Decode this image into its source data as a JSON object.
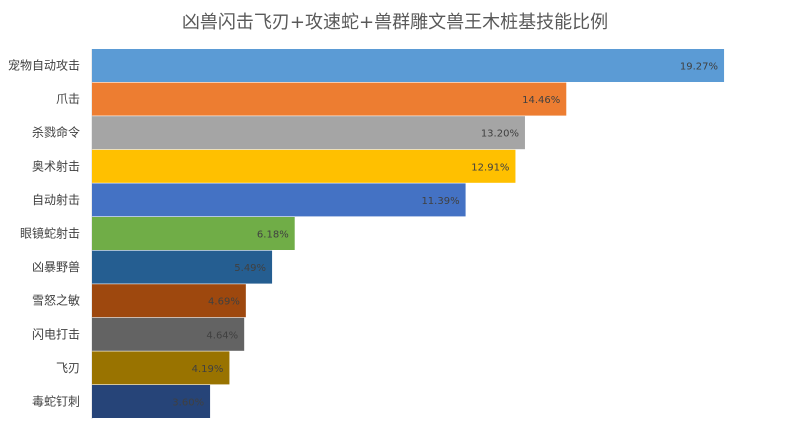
{
  "chart_data": {
    "type": "bar",
    "orientation": "horizontal",
    "title": "凶兽闪击飞刃+攻速蛇+兽群雕文兽王木桩基技能比例",
    "categories": [
      "宠物自动攻击",
      "爪击",
      "杀戮命令",
      "奥术射击",
      "自动射击",
      "眼镜蛇射击",
      "凶暴野兽",
      "雪怒之敏",
      "闪电打击",
      "飞刃",
      "毒蛇钉刺"
    ],
    "values": [
      19.27,
      14.46,
      13.2,
      12.91,
      11.39,
      6.18,
      5.49,
      4.69,
      4.64,
      4.19,
      3.6
    ],
    "labels": [
      "19.27%",
      "14.46%",
      "13.20%",
      "12.91%",
      "11.39%",
      "6.18%",
      "5.49%",
      "4.69%",
      "4.64%",
      "4.19%",
      "3.60%"
    ],
    "colors": [
      "#5B9BD5",
      "#ED7D31",
      "#A5A5A5",
      "#FFC000",
      "#4472C4",
      "#70AD47",
      "#255E91",
      "#9E480E",
      "#636363",
      "#997300",
      "#264478"
    ],
    "xlim": [
      0,
      20
    ],
    "grid": false,
    "legend": "none"
  }
}
